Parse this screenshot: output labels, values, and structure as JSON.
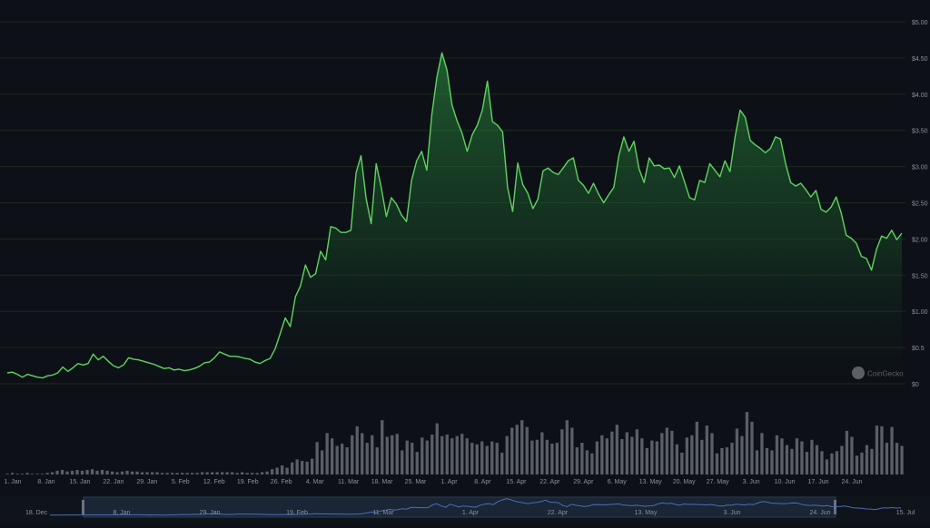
{
  "chart_data": {
    "type": "area",
    "title": "",
    "xlabel": "",
    "ylabel": "",
    "x_tick_labels": [
      "1. Jan",
      "8. Jan",
      "15. Jan",
      "22. Jan",
      "29. Jan",
      "5. Feb",
      "12. Feb",
      "19. Feb",
      "26. Feb",
      "4. Mar",
      "11. Mar",
      "18. Mar",
      "25. Mar",
      "1. Apr",
      "8. Apr",
      "15. Apr",
      "22. Apr",
      "29. Apr",
      "6. May",
      "13. May",
      "20. May",
      "27. May",
      "3. Jun",
      "10. Jun",
      "17. Jun",
      "24. Jun"
    ],
    "y_tick_labels": [
      "$0",
      "$0.5",
      "$1.00",
      "$1.50",
      "$2.00",
      "$2.50",
      "$3.00",
      "$3.50",
      "$4.00",
      "$4.50",
      "$5.00"
    ],
    "ylim": [
      0,
      5.0
    ],
    "colors": {
      "background": "#0d1117",
      "line": "#5fd35f",
      "volume": "#5a5e66",
      "grid": "#1c2a1c",
      "navigator_line": "#4a6fb3"
    },
    "watermark": "CoinGecko",
    "series": [
      {
        "values": [
          0.15,
          0.16,
          0.13,
          0.09,
          0.13,
          0.11,
          0.09,
          0.08,
          0.11,
          0.12,
          0.15,
          0.23,
          0.17,
          0.22,
          0.28,
          0.26,
          0.28,
          0.41,
          0.33,
          0.38,
          0.31,
          0.25,
          0.22,
          0.26,
          0.36,
          0.34,
          0.33,
          0.31,
          0.29,
          0.27,
          0.24,
          0.21,
          0.22,
          0.19,
          0.2,
          0.18,
          0.19,
          0.21,
          0.24,
          0.29,
          0.3,
          0.36,
          0.44,
          0.41,
          0.38,
          0.38,
          0.37,
          0.35,
          0.34,
          0.3,
          0.28,
          0.32,
          0.35,
          0.48,
          0.69,
          0.91,
          0.79,
          1.2,
          1.35,
          1.64,
          1.47,
          1.52,
          1.83,
          1.71,
          2.17,
          2.15,
          2.09,
          2.09,
          2.12,
          2.91,
          3.15,
          2.56,
          2.21,
          3.04,
          2.71,
          2.31,
          2.57,
          2.48,
          2.33,
          2.24,
          2.81,
          3.08,
          3.21,
          2.95,
          3.72,
          4.23,
          4.57,
          4.33,
          3.85,
          3.63,
          3.46,
          3.21,
          3.44,
          3.57,
          3.78,
          4.18,
          3.62,
          3.57,
          3.48,
          2.71,
          2.38,
          3.05,
          2.75,
          2.63,
          2.42,
          2.55,
          2.94,
          2.98,
          2.92,
          2.89,
          2.98,
          3.08,
          3.12,
          2.81,
          2.74,
          2.63,
          2.77,
          2.62,
          2.5,
          2.61,
          2.71,
          3.15,
          3.41,
          3.21,
          3.35,
          2.97,
          2.78,
          3.12,
          3.01,
          3.02,
          2.97,
          2.98,
          2.85,
          3.01,
          2.79,
          2.57,
          2.54,
          2.81,
          2.78,
          3.04,
          2.95,
          2.86,
          3.08,
          2.93,
          3.41,
          3.78,
          3.68,
          3.36,
          3.3,
          3.25,
          3.19,
          3.25,
          3.41,
          3.38,
          3.04,
          2.78,
          2.73,
          2.77,
          2.68,
          2.58,
          2.67,
          2.41,
          2.37,
          2.44,
          2.58,
          2.36,
          2.05,
          2.01,
          1.94,
          1.76,
          1.73,
          1.57,
          1.86,
          2.04,
          2.01,
          2.12,
          1.99,
          2.08
        ]
      }
    ],
    "volume_relative": [
      0.01,
      0.02,
      0.01,
      0.01,
      0.02,
      0.01,
      0.01,
      0.01,
      0.02,
      0.03,
      0.05,
      0.06,
      0.04,
      0.05,
      0.06,
      0.05,
      0.06,
      0.07,
      0.05,
      0.06,
      0.05,
      0.04,
      0.03,
      0.04,
      0.05,
      0.04,
      0.04,
      0.03,
      0.03,
      0.03,
      0.03,
      0.02,
      0.02,
      0.02,
      0.02,
      0.02,
      0.02,
      0.02,
      0.02,
      0.03,
      0.03,
      0.03,
      0.03,
      0.03,
      0.03,
      0.03,
      0.02,
      0.03,
      0.02,
      0.02,
      0.02,
      0.03,
      0.04,
      0.07,
      0.09,
      0.12,
      0.09,
      0.16,
      0.2,
      0.18,
      0.17,
      0.21,
      0.43,
      0.32,
      0.55,
      0.48,
      0.38,
      0.41,
      0.36,
      0.52,
      0.64,
      0.55,
      0.42,
      0.52,
      0.36,
      0.72,
      0.5,
      0.52,
      0.54,
      0.32,
      0.45,
      0.42,
      0.3,
      0.49,
      0.45,
      0.53,
      0.68,
      0.51,
      0.53,
      0.48,
      0.51,
      0.54,
      0.48,
      0.42,
      0.4,
      0.44,
      0.38,
      0.44,
      0.42,
      0.29,
      0.51,
      0.62,
      0.66,
      0.72,
      0.63,
      0.45,
      0.46,
      0.56,
      0.46,
      0.41,
      0.42,
      0.6,
      0.72,
      0.62,
      0.36,
      0.42,
      0.32,
      0.28,
      0.44,
      0.52,
      0.48,
      0.57,
      0.66,
      0.47,
      0.56,
      0.5,
      0.6,
      0.48,
      0.35,
      0.45,
      0.44,
      0.55,
      0.62,
      0.58,
      0.4,
      0.29,
      0.49,
      0.52,
      0.7,
      0.46,
      0.65,
      0.55,
      0.28,
      0.35,
      0.36,
      0.42,
      0.61,
      0.51,
      0.83,
      0.7,
      0.32,
      0.55,
      0.35,
      0.32,
      0.52,
      0.48,
      0.39,
      0.34,
      0.48,
      0.44,
      0.3,
      0.46,
      0.39,
      0.31,
      0.2,
      0.28,
      0.31,
      0.38,
      0.58,
      0.5,
      0.25,
      0.29,
      0.39,
      0.34,
      0.65,
      0.64,
      0.42,
      0.63,
      0.42,
      0.38
    ],
    "navigator": {
      "tick_labels": [
        "18. Dec",
        "8. Jan",
        "29. Jan",
        "19. Feb",
        "11. Mar",
        "1. Apr",
        "22. Apr",
        "13. May",
        "3. Jun",
        "24. Jun",
        "15. Jul"
      ]
    }
  }
}
